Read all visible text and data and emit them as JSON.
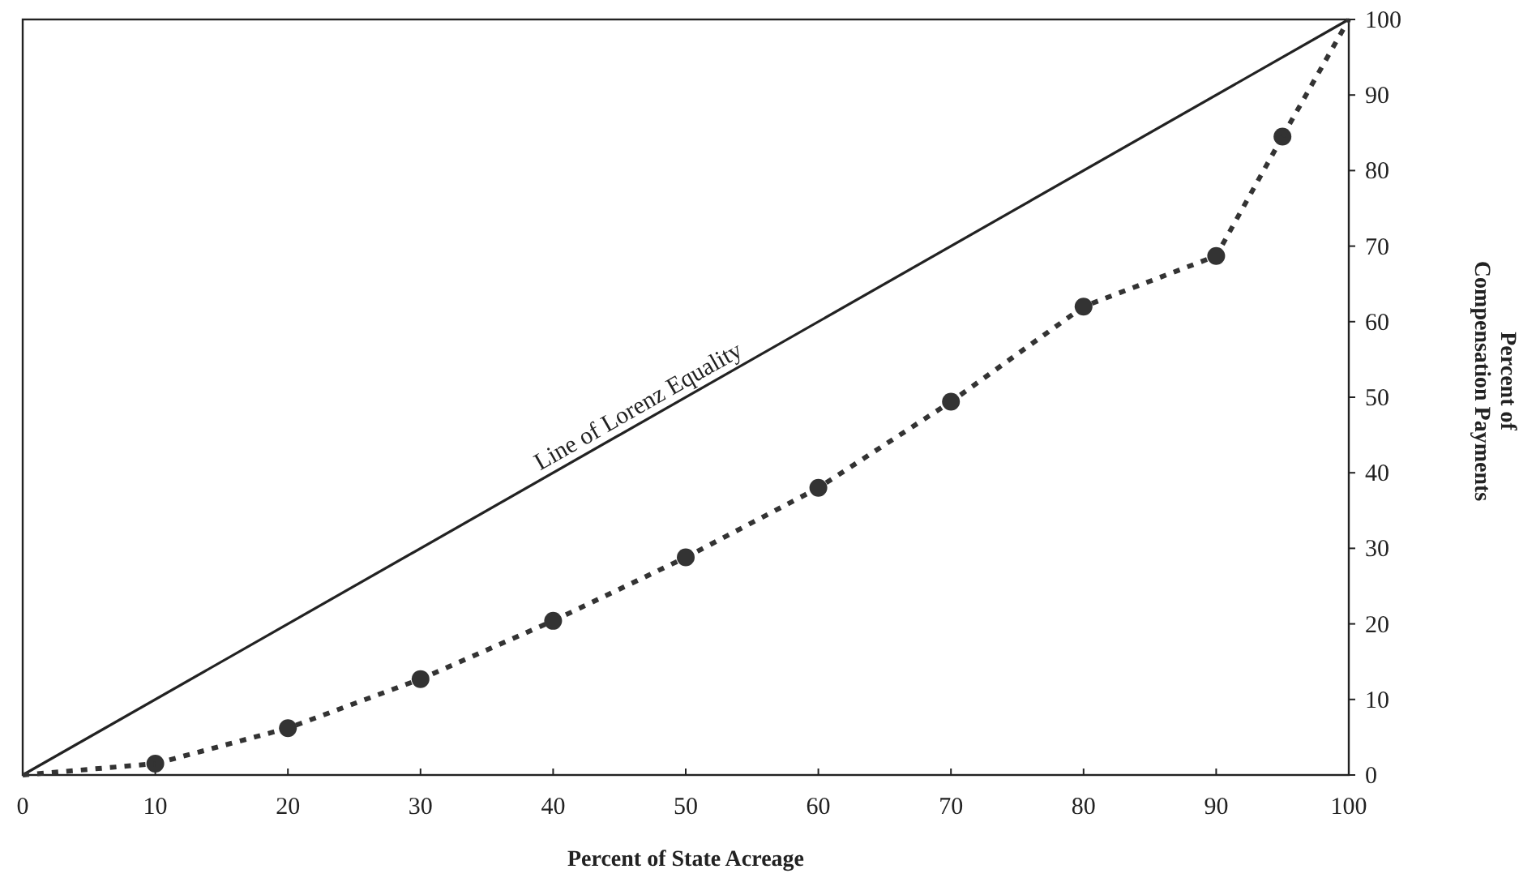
{
  "chart_data": {
    "type": "line",
    "xlabel": "Percent of State Acreage",
    "ylabel": "Percent of\nCompensation Payments",
    "xlim": [
      0,
      100
    ],
    "xticks": [
      0,
      10,
      20,
      30,
      40,
      50,
      60,
      70,
      80,
      90,
      100
    ],
    "ylim": [
      0,
      100
    ],
    "yticks": [
      0,
      10,
      20,
      30,
      40,
      50,
      60,
      70,
      80,
      90,
      100
    ],
    "grid": false,
    "series": [
      {
        "color": "#222222",
        "line_style": "solid",
        "marker": "none",
        "x": [
          0,
          100
        ],
        "values": [
          0,
          100
        ]
      },
      {
        "color": "#333333",
        "line_style": "dotted",
        "marker": "circle",
        "x": [
          10,
          20,
          30,
          40,
          50,
          60,
          70,
          80,
          90,
          95
        ],
        "values": [
          1.5,
          6.2,
          12.7,
          20.4,
          28.8,
          38,
          49.4,
          62,
          68.7,
          84.5
        ]
      },
      {
        "color": "#333333",
        "line_style": "dotted",
        "marker": "none",
        "x": [
          0,
          10
        ],
        "values": [
          0,
          1.5
        ]
      },
      {
        "color": "#333333",
        "line_style": "dotted",
        "marker": "none",
        "x": [
          95,
          100
        ],
        "values": [
          84.5,
          100
        ]
      }
    ],
    "annotations": [
      {
        "text": "Line of Lorenz Equality",
        "x": 47,
        "y": 47
      }
    ]
  }
}
